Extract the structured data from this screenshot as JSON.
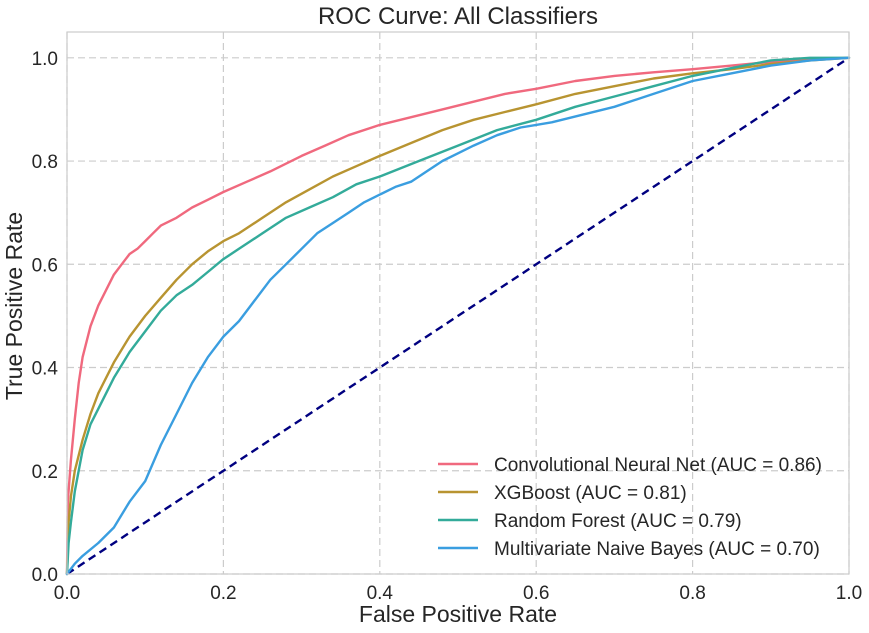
{
  "chart_data": {
    "type": "line",
    "title": "ROC Curve: All Classifiers",
    "xlabel": "False Positive Rate",
    "ylabel": "True Positive Rate",
    "xlim": [
      0.0,
      1.0
    ],
    "ylim": [
      0.0,
      1.05
    ],
    "xticks": [
      0.0,
      0.2,
      0.4,
      0.6,
      0.8,
      1.0
    ],
    "yticks": [
      0.0,
      0.2,
      0.4,
      0.6,
      0.8,
      1.0
    ],
    "xtick_labels": [
      "0.0",
      "0.2",
      "0.4",
      "0.6",
      "0.8",
      "1.0"
    ],
    "ytick_labels": [
      "0.0",
      "0.2",
      "0.4",
      "0.6",
      "0.8",
      "1.0"
    ],
    "grid": true,
    "legend_position": "bottom-right",
    "series": [
      {
        "name": "Convolutional Neural Net (AUC = 0.86)",
        "color": "#f0697e",
        "points": [
          [
            0,
            0
          ],
          [
            0.001,
            0.14
          ],
          [
            0.005,
            0.22
          ],
          [
            0.01,
            0.3
          ],
          [
            0.015,
            0.37
          ],
          [
            0.02,
            0.42
          ],
          [
            0.03,
            0.48
          ],
          [
            0.04,
            0.52
          ],
          [
            0.05,
            0.55
          ],
          [
            0.06,
            0.58
          ],
          [
            0.07,
            0.6
          ],
          [
            0.08,
            0.62
          ],
          [
            0.09,
            0.63
          ],
          [
            0.1,
            0.645
          ],
          [
            0.11,
            0.66
          ],
          [
            0.12,
            0.675
          ],
          [
            0.14,
            0.69
          ],
          [
            0.16,
            0.71
          ],
          [
            0.18,
            0.725
          ],
          [
            0.2,
            0.74
          ],
          [
            0.23,
            0.76
          ],
          [
            0.26,
            0.78
          ],
          [
            0.3,
            0.81
          ],
          [
            0.33,
            0.83
          ],
          [
            0.36,
            0.85
          ],
          [
            0.4,
            0.87
          ],
          [
            0.44,
            0.885
          ],
          [
            0.48,
            0.9
          ],
          [
            0.52,
            0.915
          ],
          [
            0.56,
            0.93
          ],
          [
            0.6,
            0.94
          ],
          [
            0.65,
            0.955
          ],
          [
            0.7,
            0.965
          ],
          [
            0.75,
            0.972
          ],
          [
            0.8,
            0.978
          ],
          [
            0.85,
            0.985
          ],
          [
            0.9,
            0.992
          ],
          [
            0.95,
            0.997
          ],
          [
            1.0,
            1.0
          ]
        ]
      },
      {
        "name": "XGBoost (AUC = 0.81)",
        "color": "#b89431",
        "points": [
          [
            0,
            0
          ],
          [
            0.002,
            0.1
          ],
          [
            0.005,
            0.15
          ],
          [
            0.01,
            0.2
          ],
          [
            0.02,
            0.26
          ],
          [
            0.03,
            0.31
          ],
          [
            0.04,
            0.35
          ],
          [
            0.05,
            0.38
          ],
          [
            0.06,
            0.41
          ],
          [
            0.08,
            0.46
          ],
          [
            0.1,
            0.5
          ],
          [
            0.12,
            0.535
          ],
          [
            0.14,
            0.57
          ],
          [
            0.16,
            0.6
          ],
          [
            0.18,
            0.625
          ],
          [
            0.2,
            0.645
          ],
          [
            0.22,
            0.66
          ],
          [
            0.25,
            0.69
          ],
          [
            0.28,
            0.72
          ],
          [
            0.31,
            0.745
          ],
          [
            0.34,
            0.77
          ],
          [
            0.37,
            0.79
          ],
          [
            0.4,
            0.81
          ],
          [
            0.44,
            0.835
          ],
          [
            0.48,
            0.86
          ],
          [
            0.52,
            0.88
          ],
          [
            0.56,
            0.895
          ],
          [
            0.6,
            0.91
          ],
          [
            0.65,
            0.93
          ],
          [
            0.7,
            0.945
          ],
          [
            0.75,
            0.96
          ],
          [
            0.8,
            0.97
          ],
          [
            0.85,
            0.978
          ],
          [
            0.9,
            0.988
          ],
          [
            0.95,
            0.995
          ],
          [
            1.0,
            1.0
          ]
        ]
      },
      {
        "name": "Random Forest (AUC = 0.79)",
        "color": "#33ab9a",
        "points": [
          [
            0,
            0
          ],
          [
            0.002,
            0.06
          ],
          [
            0.005,
            0.1
          ],
          [
            0.01,
            0.16
          ],
          [
            0.02,
            0.24
          ],
          [
            0.03,
            0.29
          ],
          [
            0.04,
            0.32
          ],
          [
            0.05,
            0.35
          ],
          [
            0.06,
            0.38
          ],
          [
            0.08,
            0.43
          ],
          [
            0.1,
            0.47
          ],
          [
            0.12,
            0.51
          ],
          [
            0.14,
            0.54
          ],
          [
            0.16,
            0.56
          ],
          [
            0.18,
            0.585
          ],
          [
            0.2,
            0.61
          ],
          [
            0.22,
            0.63
          ],
          [
            0.25,
            0.66
          ],
          [
            0.28,
            0.69
          ],
          [
            0.31,
            0.71
          ],
          [
            0.34,
            0.73
          ],
          [
            0.37,
            0.755
          ],
          [
            0.4,
            0.77
          ],
          [
            0.45,
            0.8
          ],
          [
            0.5,
            0.83
          ],
          [
            0.55,
            0.86
          ],
          [
            0.6,
            0.88
          ],
          [
            0.65,
            0.905
          ],
          [
            0.7,
            0.925
          ],
          [
            0.75,
            0.945
          ],
          [
            0.8,
            0.965
          ],
          [
            0.85,
            0.98
          ],
          [
            0.9,
            0.995
          ],
          [
            0.95,
            1.0
          ],
          [
            1.0,
            1.0
          ]
        ]
      },
      {
        "name": "Multivariate Naive Bayes (AUC = 0.70)",
        "color": "#3a9ee0",
        "points": [
          [
            0,
            0
          ],
          [
            0.01,
            0.02
          ],
          [
            0.02,
            0.035
          ],
          [
            0.04,
            0.06
          ],
          [
            0.06,
            0.09
          ],
          [
            0.08,
            0.14
          ],
          [
            0.1,
            0.18
          ],
          [
            0.12,
            0.25
          ],
          [
            0.14,
            0.31
          ],
          [
            0.16,
            0.37
          ],
          [
            0.18,
            0.42
          ],
          [
            0.2,
            0.46
          ],
          [
            0.22,
            0.49
          ],
          [
            0.24,
            0.53
          ],
          [
            0.26,
            0.57
          ],
          [
            0.28,
            0.6
          ],
          [
            0.3,
            0.63
          ],
          [
            0.32,
            0.66
          ],
          [
            0.34,
            0.68
          ],
          [
            0.36,
            0.7
          ],
          [
            0.38,
            0.72
          ],
          [
            0.4,
            0.735
          ],
          [
            0.42,
            0.75
          ],
          [
            0.44,
            0.76
          ],
          [
            0.46,
            0.78
          ],
          [
            0.48,
            0.8
          ],
          [
            0.5,
            0.815
          ],
          [
            0.52,
            0.83
          ],
          [
            0.55,
            0.85
          ],
          [
            0.58,
            0.865
          ],
          [
            0.62,
            0.875
          ],
          [
            0.66,
            0.89
          ],
          [
            0.7,
            0.905
          ],
          [
            0.75,
            0.93
          ],
          [
            0.8,
            0.955
          ],
          [
            0.85,
            0.97
          ],
          [
            0.9,
            0.985
          ],
          [
            0.95,
            0.995
          ],
          [
            1.0,
            1.0
          ]
        ]
      }
    ],
    "reference_line": {
      "color": "#000080",
      "points": [
        [
          0,
          0
        ],
        [
          1,
          1
        ]
      ]
    }
  }
}
